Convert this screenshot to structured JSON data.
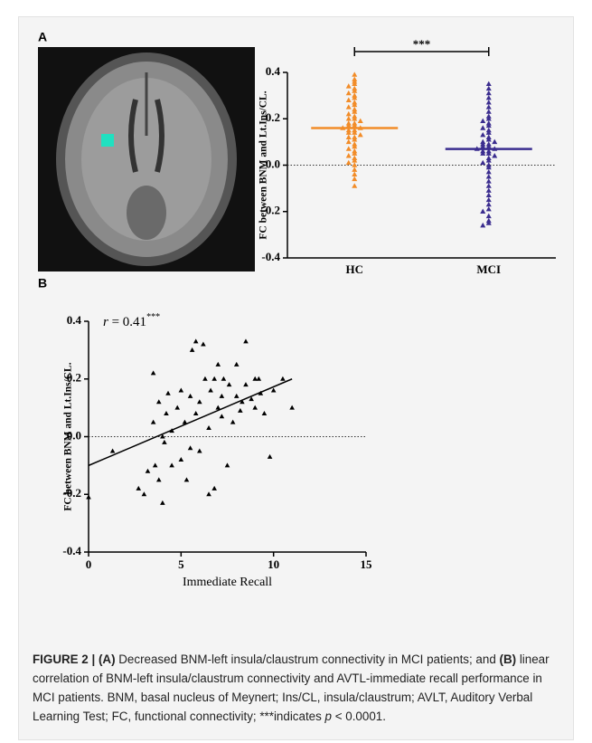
{
  "panel_labels": [
    "A",
    "B"
  ],
  "chart_data": [
    {
      "type": "strip",
      "y_label": "FC between BNM and Lt.Ins/CL.",
      "categories": [
        "HC",
        "MCI"
      ],
      "series": [
        {
          "name": "HC",
          "color": "#f28c28",
          "mean": 0.16,
          "values": [
            0.39,
            0.37,
            0.36,
            0.35,
            0.34,
            0.33,
            0.32,
            0.31,
            0.3,
            0.29,
            0.28,
            0.27,
            0.26,
            0.25,
            0.24,
            0.23,
            0.22,
            0.21,
            0.2,
            0.2,
            0.19,
            0.18,
            0.18,
            0.17,
            0.17,
            0.16,
            0.16,
            0.15,
            0.15,
            0.14,
            0.14,
            0.13,
            0.12,
            0.12,
            0.11,
            0.1,
            0.09,
            0.08,
            0.07,
            0.06,
            0.05,
            0.04,
            0.03,
            0.02,
            0.01,
            0,
            -0.02,
            -0.04,
            -0.06,
            -0.09
          ]
        },
        {
          "name": "MCI",
          "color": "#3b2d8f",
          "mean": 0.07,
          "values": [
            0.35,
            0.33,
            0.31,
            0.29,
            0.27,
            0.25,
            0.23,
            0.21,
            0.2,
            0.19,
            0.18,
            0.17,
            0.16,
            0.15,
            0.14,
            0.13,
            0.12,
            0.11,
            0.1,
            0.1,
            0.09,
            0.09,
            0.08,
            0.08,
            0.07,
            0.07,
            0.06,
            0.06,
            0.05,
            0.05,
            0.04,
            0.03,
            0.02,
            0.01,
            0,
            -0.01,
            -0.03,
            -0.05,
            -0.07,
            -0.09,
            -0.11,
            -0.13,
            -0.15,
            -0.17,
            -0.19,
            -0.2,
            -0.22,
            -0.24,
            -0.25,
            -0.26
          ]
        }
      ],
      "significance": "***",
      "ylim": [
        -0.4,
        0.4
      ],
      "yticks": [
        0.4,
        0.2,
        {
          "value": 0,
          "label": "0.0"
        },
        -0.2,
        -0.4
      ],
      "zero_line": true
    },
    {
      "type": "scatter",
      "y_label": "FC between BNM and Lt.Ins/CL.",
      "x_label": "Immediate Recall",
      "annotation": {
        "var": "r",
        "text": " = 0.41",
        "sup": "***"
      },
      "color": "#000000",
      "x": [
        0,
        1.3,
        2.7,
        3,
        3.2,
        3.5,
        3.5,
        3.6,
        3.8,
        4,
        4,
        4.1,
        4.2,
        4.3,
        4.5,
        4.8,
        5,
        5,
        5.2,
        5.3,
        5.5,
        5.6,
        5.8,
        6,
        6,
        6.2,
        6.3,
        6.5,
        6.5,
        6.6,
        6.8,
        7,
        7,
        7.2,
        7.3,
        7.5,
        7.6,
        7.8,
        8,
        8,
        8.2,
        8.5,
        8.5,
        8.8,
        9,
        9,
        9.3,
        9.5,
        9.8,
        10,
        10.5,
        11,
        5.5,
        4.5,
        6.8,
        7.2,
        3.8,
        5.8,
        8.3,
        9.2
      ],
      "y": [
        -0.21,
        -0.05,
        -0.18,
        -0.2,
        -0.12,
        0.22,
        0.05,
        -0.1,
        0.12,
        0,
        -0.23,
        -0.02,
        0.08,
        0.15,
        -0.1,
        0.1,
        0.16,
        -0.08,
        0.05,
        -0.15,
        0.14,
        0.3,
        0.33,
        0.12,
        -0.05,
        0.32,
        0.2,
        -0.2,
        0.03,
        0.16,
        -0.18,
        0.1,
        0.25,
        0.07,
        0.2,
        -0.1,
        0.18,
        0.05,
        0.14,
        0.25,
        0.09,
        0.33,
        0.18,
        0.13,
        0.2,
        0.1,
        0.15,
        0.08,
        -0.07,
        0.16,
        0.2,
        0.1,
        -0.04,
        0.02,
        0.2,
        0.14,
        -0.15,
        0.08,
        0.12,
        0.2
      ],
      "fit": {
        "x": [
          0,
          11
        ],
        "y": [
          -0.1,
          0.2
        ]
      },
      "xlim": [
        0,
        15
      ],
      "xticks": [
        0,
        5,
        10,
        15
      ],
      "ylim": [
        -0.4,
        0.4
      ],
      "yticks": [
        0.4,
        0.2,
        {
          "value": 0,
          "label": "0.0"
        },
        -0.2,
        -0.4
      ],
      "zero_line": true
    }
  ],
  "caption": {
    "label": "FIGURE 2 | (A)",
    "text1": " Decreased BNM-left insula/claustrum connectivity in MCI patients; and ",
    "b": "(B)",
    "text2": " linear correlation of BNM-left insula/claustrum connectivity and AVTL-immediate recall performance in MCI patients. BNM, basal nucleus of Meynert; Ins/CL, insula/claustrum; AVLT, Auditory Verbal Learning Test; FC, functional connectivity; ***indicates ",
    "p": "p",
    "text3": " < 0.0001."
  }
}
